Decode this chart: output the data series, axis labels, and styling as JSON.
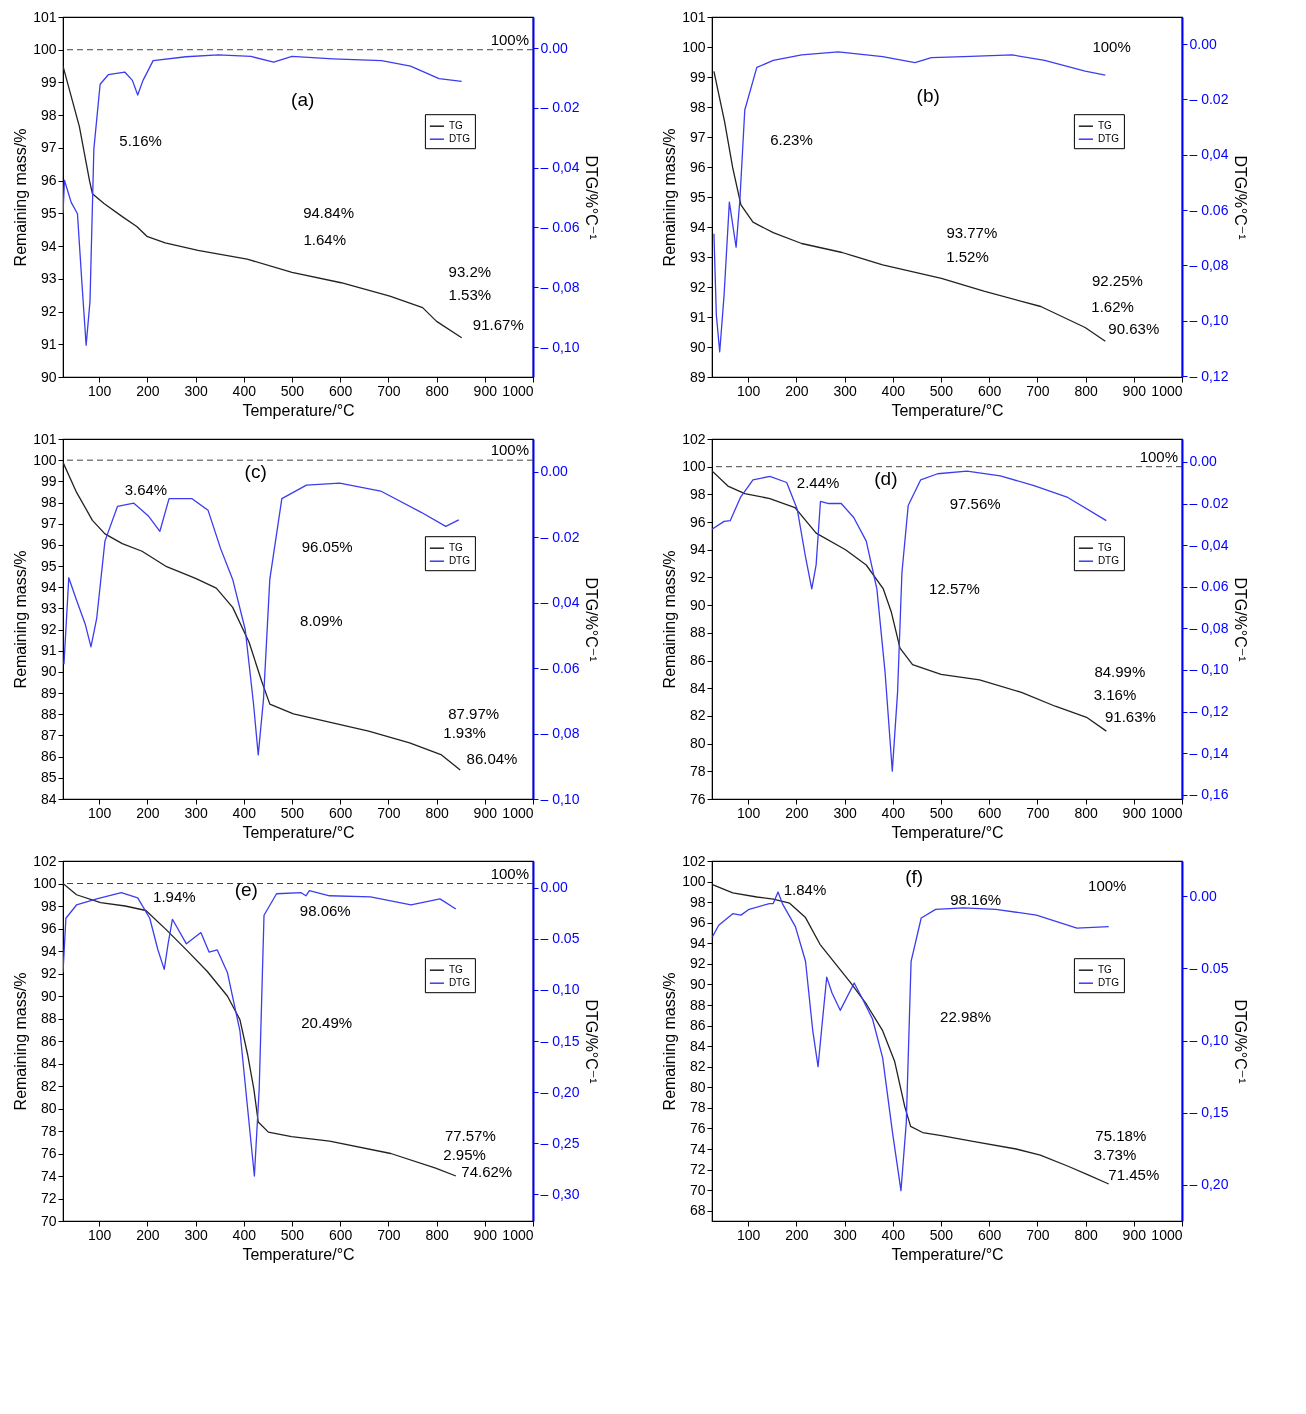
{
  "chart_data": [
    {
      "type": "line",
      "title": "(a)",
      "xlabel": "Temperature/°C",
      "ylabel": "Remaining mass/%",
      "y2label": "DTG/%°C⁻¹",
      "legend": "top right",
      "xlim": [
        25,
        1000
      ],
      "xticks": [
        100,
        200,
        300,
        400,
        500,
        600,
        700,
        800,
        900,
        1000
      ],
      "ylim": [
        90,
        101
      ],
      "yticks": [
        90,
        91,
        92,
        93,
        94,
        95,
        96,
        97,
        98,
        99,
        100,
        101
      ],
      "y2lim": [
        -0.11,
        0.0104
      ],
      "y2ticks": [
        {
          "value": 0,
          "label": "0.00"
        },
        {
          "value": -0.02,
          "label": "– 0.02"
        },
        {
          "value": -0.04,
          "label": "– 0,04"
        },
        {
          "value": -0.06,
          "label": "– 0.06"
        },
        {
          "value": -0.08,
          "label": "– 0,08"
        },
        {
          "value": -0.1,
          "label": "– 0,10"
        }
      ],
      "series": [
        {
          "name": "TG",
          "color": "#222222",
          "x": [
            25,
            59,
            80,
            86,
            110,
            148,
            178,
            199,
            237,
            305,
            407,
            500,
            602,
            703,
            771,
            800,
            852
          ],
          "values": [
            99.5,
            97.65,
            96.0,
            95.6,
            95.3,
            94.9,
            94.6,
            94.3,
            94.1,
            93.87,
            93.6,
            93.2,
            92.88,
            92.47,
            92.12,
            91.7,
            91.2
          ]
        },
        {
          "name": "DTG",
          "color": "#3c3cf0",
          "axis": "y2",
          "x": [
            25,
            28,
            42,
            55,
            64,
            73,
            81,
            89,
            102,
            119,
            153,
            169,
            180,
            191,
            212,
            280,
            347,
            415,
            462,
            500,
            585,
            686,
            746,
            805,
            852
          ],
          "values": [
            -0.0554,
            -0.0442,
            -0.0516,
            -0.0554,
            -0.078,
            -0.0994,
            -0.0847,
            -0.0338,
            -0.0121,
            -0.0089,
            -0.008,
            -0.0108,
            -0.0157,
            -0.0108,
            -0.0042,
            -0.0029,
            -0.0023,
            -0.0028,
            -0.0047,
            -0.0028,
            -0.0036,
            -0.0042,
            -0.006,
            -0.0102,
            -0.0111
          ]
        }
      ],
      "ref_lines": [
        {
          "axis": "y",
          "value": 100,
          "label": "100%",
          "line_style": "dashed"
        }
      ],
      "annotations": [
        "5.16%",
        "94.84%",
        "1.64%",
        "93.2%",
        "1.53%",
        "91.67%"
      ]
    },
    {
      "type": "line",
      "title": "(b)",
      "xlabel": "Temperature/°C",
      "ylabel": "Remaining mass/%",
      "y2label": "DTG/%°C⁻¹",
      "legend": "top right",
      "xlim": [
        25,
        1000
      ],
      "xticks": [
        100,
        200,
        300,
        400,
        500,
        600,
        700,
        800,
        900,
        1000
      ],
      "ylim": [
        89,
        101
      ],
      "yticks": [
        89,
        90,
        91,
        92,
        93,
        94,
        95,
        96,
        97,
        98,
        99,
        100,
        101
      ],
      "y2lim": [
        -0.1203,
        0.0098
      ],
      "y2ticks": [
        {
          "value": 0,
          "label": "0.00"
        },
        {
          "value": -0.02,
          "label": "– 0.02"
        },
        {
          "value": -0.04,
          "label": "– 0,04"
        },
        {
          "value": -0.06,
          "label": "– 0.06"
        },
        {
          "value": -0.08,
          "label": "– 0,08"
        },
        {
          "value": -0.1,
          "label": "– 0,10"
        },
        {
          "value": -0.12,
          "label": "– 0,12"
        }
      ],
      "series": [
        {
          "name": "TG",
          "color": "#222222",
          "x": [
            29,
            51,
            68,
            85,
            110,
            152,
            211,
            295,
            379,
            501,
            589,
            707,
            799,
            841
          ],
          "values": [
            99.19,
            97.52,
            95.97,
            94.74,
            94.16,
            93.81,
            93.45,
            93.15,
            92.74,
            92.29,
            91.86,
            91.35,
            90.65,
            90.19
          ]
        },
        {
          "name": "DTG",
          "color": "#3c3cf0",
          "axis": "y2",
          "x": [
            29,
            34,
            41,
            50,
            61,
            75,
            83,
            93,
            118,
            152,
            211,
            287,
            379,
            446,
            480,
            547,
            648,
            715,
            799,
            841
          ],
          "values": [
            -0.0685,
            -0.0979,
            -0.1112,
            -0.0909,
            -0.0571,
            -0.0734,
            -0.0559,
            -0.0238,
            -0.0084,
            -0.0059,
            -0.0039,
            -0.0028,
            -0.0045,
            -0.0067,
            -0.0049,
            -0.0045,
            -0.0039,
            -0.0059,
            -0.0098,
            -0.0112
          ]
        }
      ],
      "annotations": [
        "100%",
        "6.23%",
        "93.77%",
        "1.52%",
        "92.25%",
        "1.62%",
        "90.63%"
      ]
    },
    {
      "type": "line",
      "title": "(c)",
      "xlabel": "Temperature/°C",
      "ylabel": "Remaining mass/%",
      "y2label": "DTG/%°C⁻¹",
      "legend": "top right",
      "xlim": [
        25,
        1000
      ],
      "xticks": [
        100,
        200,
        300,
        400,
        500,
        600,
        700,
        800,
        900,
        1000
      ],
      "ylim": [
        84,
        101
      ],
      "yticks": [
        84,
        85,
        86,
        87,
        88,
        89,
        90,
        91,
        92,
        93,
        94,
        95,
        96,
        97,
        98,
        99,
        100,
        101
      ],
      "y2lim": [
        -0.1,
        0.01
      ],
      "y2ticks": [
        {
          "value": 0,
          "label": "0.00"
        },
        {
          "value": -0.02,
          "label": "– 0.02"
        },
        {
          "value": -0.04,
          "label": "– 0,04"
        },
        {
          "value": -0.06,
          "label": "– 0.06"
        },
        {
          "value": -0.08,
          "label": "– 0,08"
        },
        {
          "value": -0.1,
          "label": "– 0,10"
        }
      ],
      "series": [
        {
          "name": "TG",
          "color": "#222222",
          "x": [
            25,
            52,
            86,
            112,
            148,
            189,
            240,
            300,
            343,
            377,
            411,
            437,
            454,
            503,
            573,
            659,
            744,
            809,
            849
          ],
          "values": [
            99.9,
            98.53,
            97.16,
            96.52,
            96.06,
            95.7,
            94.97,
            94.42,
            93.96,
            93.05,
            91.4,
            89.57,
            88.48,
            88.02,
            87.65,
            87.2,
            86.65,
            86.1,
            85.37
          ]
        },
        {
          "name": "DTG",
          "color": "#3c3cf0",
          "axis": "y2",
          "x": [
            27,
            37,
            52,
            71,
            83,
            95,
            112,
            138,
            172,
            202,
            226,
            245,
            292,
            326,
            352,
            377,
            403,
            420,
            430,
            441,
            454,
            479,
            530,
            599,
            684,
            768,
            819,
            846
          ],
          "values": [
            -0.0588,
            -0.0324,
            -0.0388,
            -0.0465,
            -0.0535,
            -0.0447,
            -0.0212,
            -0.0106,
            -0.0096,
            -0.0135,
            -0.0182,
            -0.0082,
            -0.0082,
            -0.0118,
            -0.0235,
            -0.0329,
            -0.0482,
            -0.0706,
            -0.0865,
            -0.0694,
            -0.0329,
            -0.0082,
            -0.0041,
            -0.0035,
            -0.0059,
            -0.0124,
            -0.0167,
            -0.0147
          ]
        }
      ],
      "ref_lines": [
        {
          "axis": "y",
          "value": 100,
          "label": "100%",
          "line_style": "dashed"
        }
      ],
      "annotations": [
        "3.64%",
        "96.05%",
        "8.09%",
        "87.97%",
        "1.93%",
        "86.04%"
      ]
    },
    {
      "type": "line",
      "title": "(d)",
      "xlabel": "Temperature/°C",
      "ylabel": "Remaining mass/%",
      "y2label": "DTG/%°C⁻¹",
      "legend": "top right",
      "xlim": [
        25,
        1000
      ],
      "xticks": [
        100,
        200,
        300,
        400,
        500,
        600,
        700,
        800,
        900,
        1000
      ],
      "ylim": [
        76,
        102
      ],
      "yticks": [
        76,
        78,
        80,
        82,
        84,
        86,
        88,
        90,
        92,
        94,
        96,
        98,
        100,
        102
      ],
      "y2lim": [
        -0.162,
        0.011
      ],
      "y2ticks": [
        {
          "value": 0,
          "label": "0.00"
        },
        {
          "value": -0.02,
          "label": "– 0.02"
        },
        {
          "value": -0.04,
          "label": "– 0,04"
        },
        {
          "value": -0.06,
          "label": "– 0.06"
        },
        {
          "value": -0.08,
          "label": "– 0,08"
        },
        {
          "value": -0.1,
          "label": "– 0,10"
        },
        {
          "value": -0.12,
          "label": "– 0,12"
        },
        {
          "value": -0.14,
          "label": "– 0,14"
        },
        {
          "value": -0.16,
          "label": "– 0,16"
        }
      ],
      "series": [
        {
          "name": "TG",
          "color": "#222222",
          "x": [
            25,
            58,
            93,
            145,
            197,
            241,
            302,
            345,
            380,
            397,
            415,
            441,
            500,
            580,
            667,
            737,
            802,
            843
          ],
          "values": [
            99.7,
            98.6,
            98.05,
            97.7,
            97.05,
            95.2,
            94.0,
            92.9,
            91.2,
            89.5,
            86.9,
            85.7,
            85.0,
            84.6,
            83.7,
            82.7,
            81.9,
            80.9
          ]
        },
        {
          "name": "DTG",
          "color": "#3c3cf0",
          "axis": "y2",
          "x": [
            25,
            50,
            63,
            84,
            110,
            145,
            180,
            202,
            219,
            232,
            241,
            250,
            267,
            293,
            319,
            345,
            367,
            384,
            399,
            410,
            419,
            432,
            458,
            493,
            554,
            623,
            693,
            763,
            843
          ],
          "values": [
            -0.0324,
            -0.0286,
            -0.0282,
            -0.0171,
            -0.0086,
            -0.007,
            -0.0099,
            -0.0229,
            -0.0457,
            -0.061,
            -0.0495,
            -0.019,
            -0.02,
            -0.02,
            -0.0267,
            -0.0381,
            -0.061,
            -0.101,
            -0.1486,
            -0.1105,
            -0.0533,
            -0.021,
            -0.0086,
            -0.0057,
            -0.0044,
            -0.0067,
            -0.0114,
            -0.0171,
            -0.0282
          ]
        }
      ],
      "ref_lines": [
        {
          "axis": "y",
          "value": 100,
          "label": "100%",
          "line_style": "dashed"
        }
      ],
      "annotations": [
        "2.44%",
        "97.56%",
        "12.57%",
        "84.99%",
        "3.16%",
        "91.63%"
      ]
    },
    {
      "type": "line",
      "title": "(e)",
      "xlabel": "Temperature/°C",
      "ylabel": "Remaining mass/%",
      "y2label": "DTG/%°C⁻¹",
      "legend": "top right",
      "xlim": [
        25,
        1000
      ],
      "xticks": [
        100,
        200,
        300,
        400,
        500,
        600,
        700,
        800,
        900,
        1000
      ],
      "ylim": [
        70,
        102
      ],
      "yticks": [
        70,
        72,
        74,
        76,
        78,
        80,
        82,
        84,
        86,
        88,
        90,
        92,
        94,
        96,
        98,
        100,
        102
      ],
      "y2lim": [
        -0.326,
        0.026
      ],
      "y2ticks": [
        {
          "value": 0,
          "label": "0.00"
        },
        {
          "value": -0.05,
          "label": "– 0.05"
        },
        {
          "value": -0.1,
          "label": "– 0,10"
        },
        {
          "value": -0.15,
          "label": "– 0,15"
        },
        {
          "value": -0.2,
          "label": "– 0,20"
        },
        {
          "value": -0.25,
          "label": "– 0,25"
        },
        {
          "value": -0.3,
          "label": "– 0,30"
        }
      ],
      "series": [
        {
          "name": "TG",
          "color": "#222222",
          "x": [
            25,
            53,
            103,
            154,
            197,
            239,
            281,
            324,
            366,
            392,
            408,
            421,
            430,
            451,
            499,
            578,
            705,
            798,
            840
          ],
          "values": [
            100.0,
            99.0,
            98.3,
            98.0,
            97.6,
            95.9,
            94.1,
            92.2,
            90.0,
            87.9,
            84.8,
            81.7,
            78.8,
            77.9,
            77.5,
            77.1,
            76.0,
            74.7,
            74.0
          ]
        },
        {
          "name": "DTG",
          "color": "#3c3cf0",
          "axis": "y2",
          "x": [
            25,
            31,
            53,
            95,
            146,
            180,
            205,
            222,
            235,
            243,
            252,
            281,
            311,
            328,
            345,
            366,
            392,
            408,
            422,
            432,
            442,
            468,
            519,
            529,
            536,
            578,
            663,
            747,
            807,
            840
          ],
          "values": [
            -0.083,
            -0.03,
            -0.017,
            -0.011,
            -0.005,
            -0.01,
            -0.03,
            -0.061,
            -0.08,
            -0.055,
            -0.031,
            -0.055,
            -0.044,
            -0.063,
            -0.061,
            -0.083,
            -0.14,
            -0.216,
            -0.282,
            -0.197,
            -0.027,
            -0.006,
            -0.005,
            -0.008,
            -0.003,
            -0.008,
            -0.009,
            -0.017,
            -0.011,
            -0.021
          ]
        }
      ],
      "ref_lines": [
        {
          "axis": "y",
          "value": 100,
          "label": "100%",
          "line_style": "dashed"
        }
      ],
      "annotations": [
        "1.94%",
        "98.06%",
        "20.49%",
        "77.57%",
        "2.95%",
        "74.62%"
      ]
    },
    {
      "type": "line",
      "title": "(f)",
      "xlabel": "Temperature/°C",
      "ylabel": "Remaining mass/%",
      "y2label": "DTG/%°C⁻¹",
      "legend": "top right",
      "xlim": [
        25,
        1000
      ],
      "xticks": [
        100,
        200,
        300,
        400,
        500,
        600,
        700,
        800,
        900,
        1000
      ],
      "ylim": [
        67,
        102
      ],
      "yticks": [
        68,
        70,
        72,
        74,
        76,
        78,
        80,
        82,
        84,
        86,
        88,
        90,
        92,
        94,
        96,
        98,
        100,
        102
      ],
      "y2lim": [
        -0.225,
        0.0245
      ],
      "y2ticks": [
        {
          "value": 0,
          "label": "0.00"
        },
        {
          "value": -0.05,
          "label": "– 0.05"
        },
        {
          "value": -0.1,
          "label": "– 0,10"
        },
        {
          "value": -0.15,
          "label": "– 0,15"
        },
        {
          "value": -0.2,
          "label": "– 0,20"
        }
      ],
      "series": [
        {
          "name": "TG",
          "color": "#222222",
          "x": [
            26,
            68,
            118,
            152,
            186,
            219,
            249,
            278,
            312,
            345,
            379,
            404,
            425,
            437,
            462,
            501,
            572,
            656,
            706,
            765,
            804,
            848
          ],
          "values": [
            99.7,
            98.9,
            98.5,
            98.3,
            97.9,
            96.5,
            93.9,
            92.2,
            90.2,
            88.1,
            85.5,
            82.5,
            78.1,
            76.2,
            75.6,
            75.3,
            74.7,
            74.0,
            73.4,
            72.3,
            71.5,
            70.6
          ]
        },
        {
          "name": "DTG",
          "color": "#3c3cf0",
          "axis": "y2",
          "x": [
            26,
            39,
            68,
            85,
            102,
            144,
            152,
            162,
            171,
            198,
            219,
            234,
            245,
            253,
            263,
            274,
            291,
            320,
            337,
            358,
            379,
            400,
            417,
            428,
            438,
            459,
            489,
            547,
            614,
            698,
            782,
            848
          ],
          "values": [
            -0.028,
            -0.02,
            -0.012,
            -0.013,
            -0.009,
            -0.005,
            -0.005,
            0.003,
            -0.005,
            -0.021,
            -0.045,
            -0.093,
            -0.118,
            -0.09,
            -0.056,
            -0.067,
            -0.079,
            -0.06,
            -0.071,
            -0.085,
            -0.112,
            -0.165,
            -0.204,
            -0.157,
            -0.045,
            -0.015,
            -0.009,
            -0.008,
            -0.009,
            -0.013,
            -0.022,
            -0.021
          ]
        }
      ],
      "annotations": [
        "100%",
        "1.84%",
        "98.16%",
        "22.98%",
        "75.18%",
        "3.73%",
        "71.45%"
      ]
    }
  ]
}
